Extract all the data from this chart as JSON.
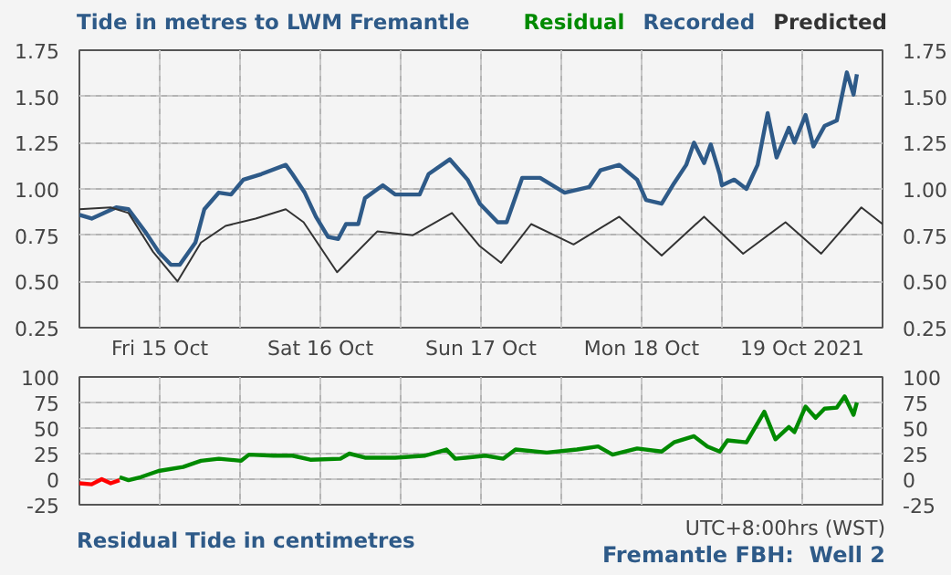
{
  "chart_data": [
    {
      "type": "line",
      "title": "Tide in metres to LWM Fremantle",
      "xlim": [
        "2021-10-15T00:00",
        "2021-10-20T00:00"
      ],
      "xticks": [
        {
          "value": "2021-10-15T12:00",
          "label": "Fri 15 Oct"
        },
        {
          "value": "2021-10-16T00:00",
          "label": null
        },
        {
          "value": "2021-10-16T12:00",
          "label": "Sat 16 Oct"
        },
        {
          "value": "2021-10-17T00:00",
          "label": null
        },
        {
          "value": "2021-10-17T12:00",
          "label": "Sun 17 Oct"
        },
        {
          "value": "2021-10-18T00:00",
          "label": null
        },
        {
          "value": "2021-10-18T12:00",
          "label": "Mon 18 Oct"
        },
        {
          "value": "2021-10-19T00:00",
          "label": null
        },
        {
          "value": "2021-10-19T12:00",
          "label": "19 Oct 2021"
        }
      ],
      "ylim": [
        0.25,
        1.75
      ],
      "yticks": [
        0.25,
        {
          "value": 0.5,
          "label": "0.50"
        },
        0.75,
        {
          "value": 1,
          "label": "1.00"
        },
        1.25,
        {
          "value": 1.5,
          "label": "1.50"
        },
        1.75
      ],
      "y2lim": [
        0.25,
        1.75
      ],
      "y2ticks": [
        0.25,
        {
          "value": 0.5,
          "label": "0.50"
        },
        0.75,
        {
          "value": 1,
          "label": "1.00"
        },
        1.25,
        {
          "value": 1.5,
          "label": "1.50"
        },
        1.75
      ],
      "grid": true,
      "line_style": "solid",
      "marker": "none",
      "series": [
        {
          "name": "Recorded",
          "color": "#2e5a88",
          "x": [
            "2021-10-15T00:00",
            "2021-10-15T01:50",
            "2021-10-15T05:30",
            "2021-10-15T07:20",
            "2021-10-15T10:00",
            "2021-10-15T11:50",
            "2021-10-15T13:40",
            "2021-10-15T15:00",
            "2021-10-15T17:20",
            "2021-10-15T18:40",
            "2021-10-15T20:50",
            "2021-10-15T22:40",
            "2021-10-16T00:30",
            "2021-10-16T03:10",
            "2021-10-16T06:50",
            "2021-10-16T07:50",
            "2021-10-16T09:40",
            "2021-10-16T11:20",
            "2021-10-16T13:10",
            "2021-10-16T14:40",
            "2021-10-16T15:50",
            "2021-10-16T17:40",
            "2021-10-16T18:40",
            "2021-10-16T21:20",
            "2021-10-16T23:10",
            "2021-10-17T02:50",
            "2021-10-17T04:10",
            "2021-10-17T07:20",
            "2021-10-17T10:00",
            "2021-10-17T11:50",
            "2021-10-17T14:30",
            "2021-10-17T15:50",
            "2021-10-17T18:10",
            "2021-10-17T20:50",
            "2021-10-18T00:30",
            "2021-10-18T04:10",
            "2021-10-18T05:50",
            "2021-10-18T08:40",
            "2021-10-18T11:20",
            "2021-10-18T12:40",
            "2021-10-18T15:00",
            "2021-10-18T16:50",
            "2021-10-18T18:40",
            "2021-10-18T19:50",
            "2021-10-18T21:20",
            "2021-10-18T22:20",
            "2021-10-18T23:40",
            "2021-10-19T00:00",
            "2021-10-19T01:50",
            "2021-10-19T03:40",
            "2021-10-19T05:20",
            "2021-10-19T06:50",
            "2021-10-19T08:10",
            "2021-10-19T10:00",
            "2021-10-19T10:50",
            "2021-10-19T12:30",
            "2021-10-19T13:40",
            "2021-10-19T15:20",
            "2021-10-19T17:10",
            "2021-10-19T18:40",
            "2021-10-19T19:40",
            "2021-10-19T20:10"
          ],
          "values": [
            0.86,
            0.84,
            0.9,
            0.89,
            0.76,
            0.66,
            0.59,
            0.59,
            0.71,
            0.89,
            0.98,
            0.97,
            1.05,
            1.08,
            1.13,
            1.08,
            0.98,
            0.85,
            0.74,
            0.73,
            0.81,
            0.81,
            0.95,
            1.02,
            0.97,
            0.97,
            1.08,
            1.16,
            1.05,
            0.92,
            0.82,
            0.82,
            1.06,
            1.06,
            0.98,
            1.01,
            1.1,
            1.13,
            1.05,
            0.94,
            0.92,
            1.03,
            1.13,
            1.25,
            1.14,
            1.24,
            1.08,
            1.02,
            1.05,
            1.0,
            1.13,
            1.41,
            1.17,
            1.33,
            1.25,
            1.4,
            1.23,
            1.34,
            1.37,
            1.63,
            1.51,
            1.62
          ]
        },
        {
          "name": "Predicted",
          "color": "#333333",
          "x": [
            "2021-10-15T00:00",
            "2021-10-15T04:40",
            "2021-10-15T07:20",
            "2021-10-15T11:00",
            "2021-10-15T14:40",
            "2021-10-15T18:10",
            "2021-10-15T21:50",
            "2021-10-16T02:20",
            "2021-10-16T06:50",
            "2021-10-16T09:30",
            "2021-10-16T14:30",
            "2021-10-16T20:30",
            "2021-10-17T01:50",
            "2021-10-17T07:40",
            "2021-10-17T11:50",
            "2021-10-17T15:00",
            "2021-10-17T19:30",
            "2021-10-18T01:50",
            "2021-10-18T08:40",
            "2021-10-18T15:00",
            "2021-10-18T21:20",
            "2021-10-19T03:10",
            "2021-10-19T09:30",
            "2021-10-19T14:50",
            "2021-10-19T20:50",
            "2021-10-20T00:00"
          ],
          "values": [
            0.89,
            0.9,
            0.87,
            0.66,
            0.5,
            0.71,
            0.8,
            0.84,
            0.89,
            0.82,
            0.55,
            0.77,
            0.75,
            0.87,
            0.69,
            0.6,
            0.81,
            0.7,
            0.85,
            0.64,
            0.85,
            0.65,
            0.82,
            0.65,
            0.9,
            0.81
          ]
        }
      ]
    },
    {
      "type": "line",
      "title": "Residual Tide in centimetres",
      "annotations": [
        "UTC+8:00hrs (WST)",
        "Fremantle FBH:  Well 2"
      ],
      "xlim": [
        "2021-10-15T00:00",
        "2021-10-20T00:00"
      ],
      "xticks": [
        {
          "value": "2021-10-15T12:00",
          "label": null
        },
        {
          "value": "2021-10-16T00:00",
          "label": null
        },
        {
          "value": "2021-10-16T12:00",
          "label": null
        },
        {
          "value": "2021-10-17T00:00",
          "label": null
        },
        {
          "value": "2021-10-17T12:00",
          "label": null
        },
        {
          "value": "2021-10-18T00:00",
          "label": null
        },
        {
          "value": "2021-10-18T12:00",
          "label": null
        },
        {
          "value": "2021-10-19T00:00",
          "label": null
        },
        {
          "value": "2021-10-19T12:00",
          "label": null
        }
      ],
      "ylim": [
        -25,
        100
      ],
      "yticks": [
        -25,
        0,
        25,
        50,
        75,
        100
      ],
      "y2lim": [
        -25,
        100
      ],
      "y2ticks": [
        -25,
        0,
        25,
        50,
        75,
        100
      ],
      "tick_labels": "y",
      "grid": true,
      "line_style": "solid",
      "marker": "none",
      "series": [
        {
          "color": "#ff0000",
          "x": [
            "2021-10-15T00:00",
            "2021-10-15T01:50",
            "2021-10-15T03:20",
            "2021-10-15T04:40",
            "2021-10-15T06:00"
          ],
          "values": [
            -4,
            -5,
            0,
            -4,
            -1
          ]
        },
        {
          "name": "Residual",
          "color": "#008a00",
          "x": [
            "2021-10-15T06:00",
            "2021-10-15T07:20",
            "2021-10-15T09:10",
            "2021-10-15T11:50",
            "2021-10-15T15:30",
            "2021-10-15T18:10",
            "2021-10-15T20:50",
            "2021-10-16T00:10",
            "2021-10-16T01:20",
            "2021-10-16T05:00",
            "2021-10-16T07:50",
            "2021-10-16T10:30",
            "2021-10-16T15:00",
            "2021-10-16T16:20",
            "2021-10-16T18:40",
            "2021-10-16T23:10",
            "2021-10-17T03:40",
            "2021-10-17T06:50",
            "2021-10-17T08:10",
            "2021-10-17T12:40",
            "2021-10-17T15:20",
            "2021-10-17T17:10",
            "2021-10-17T21:50",
            "2021-10-18T02:20",
            "2021-10-18T05:30",
            "2021-10-18T07:40",
            "2021-10-18T11:20",
            "2021-10-18T15:00",
            "2021-10-18T16:50",
            "2021-10-18T19:50",
            "2021-10-18T21:50",
            "2021-10-18T23:40",
            "2021-10-19T00:50",
            "2021-10-19T03:40",
            "2021-10-19T06:20",
            "2021-10-19T08:00",
            "2021-10-19T10:00",
            "2021-10-19T10:50",
            "2021-10-19T12:30",
            "2021-10-19T14:00",
            "2021-10-19T15:20",
            "2021-10-19T17:10",
            "2021-10-19T18:20",
            "2021-10-19T19:40",
            "2021-10-19T20:10"
          ],
          "values": [
            2,
            -1,
            2,
            8,
            12,
            18,
            20,
            18,
            24,
            23,
            23,
            19,
            20,
            25,
            21,
            21,
            23,
            29,
            20,
            23,
            20,
            29,
            26,
            29,
            32,
            24,
            30,
            27,
            36,
            42,
            32,
            27,
            38,
            36,
            66,
            39,
            51,
            46,
            71,
            60,
            69,
            70,
            81,
            63,
            75
          ]
        }
      ]
    }
  ]
}
